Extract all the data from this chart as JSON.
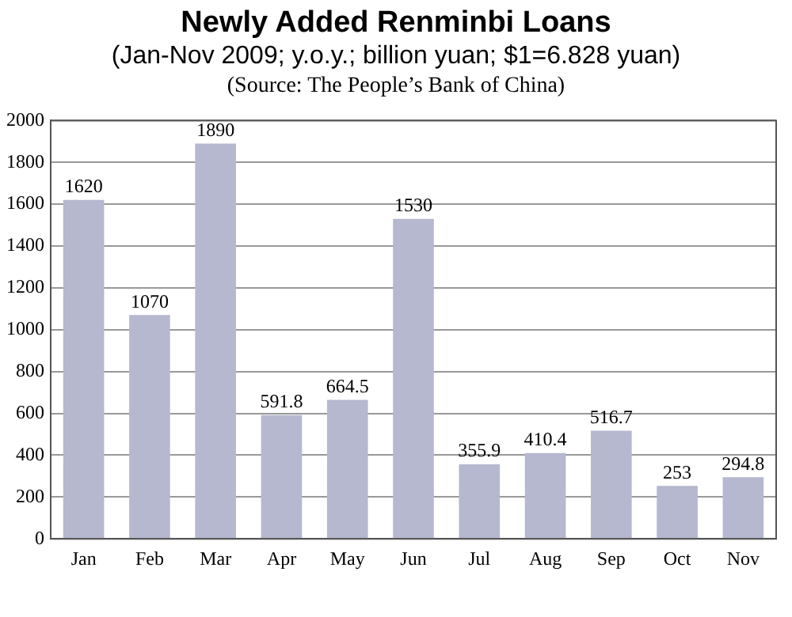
{
  "chart_data": {
    "type": "bar",
    "title": "Newly Added Renminbi Loans",
    "subtitle": "(Jan-Nov 2009; y.o.y.; billion yuan;  $1=6.828 yuan)",
    "annotations": [
      "(Source: The People’s Bank of China)"
    ],
    "categories": [
      "Jan",
      "Feb",
      "Mar",
      "Apr",
      "May",
      "Jun",
      "Jul",
      "Aug",
      "Sep",
      "Oct",
      "Nov"
    ],
    "values": [
      1620,
      1070,
      1890,
      591.8,
      664.5,
      1530,
      355.9,
      410.4,
      516.7,
      253,
      294.8
    ],
    "color": "#b5b8cf",
    "ylim": [
      0,
      2000
    ],
    "yticks": [
      0,
      200,
      400,
      600,
      800,
      1000,
      1200,
      1400,
      1600,
      1800,
      2000
    ],
    "grid": "y",
    "data_labels": true
  }
}
